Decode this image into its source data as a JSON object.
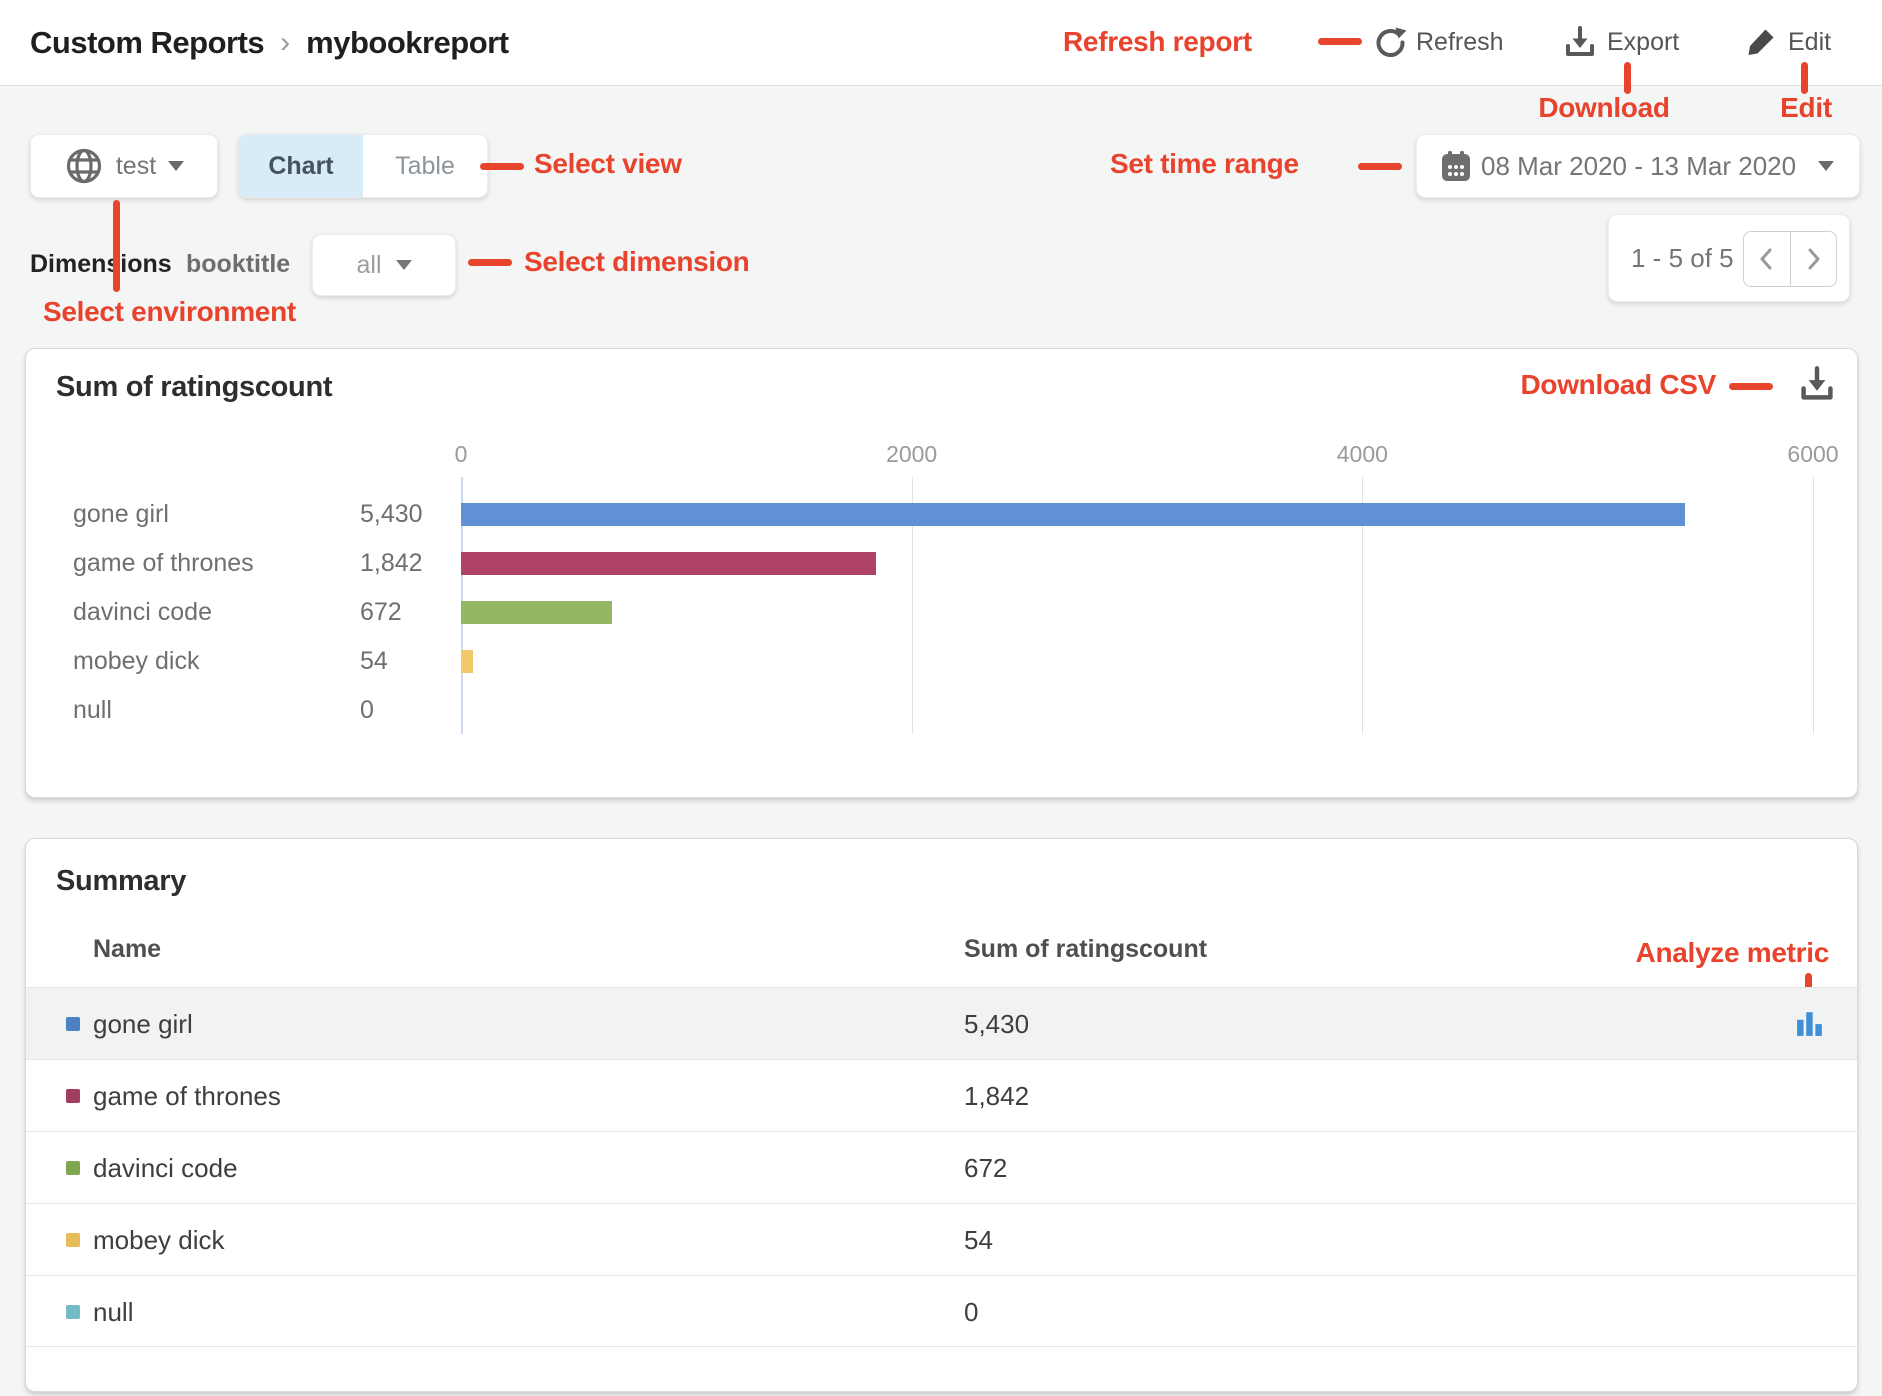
{
  "colors": {
    "annotation": "#e8432c",
    "toggle_active_bg": "#d7ebf9",
    "analyze_icon": "#3f8fd8",
    "axis_line": "#ccd8ec",
    "gridline": "#e3e3e3",
    "alt_row_bg": "#f1f2f2"
  },
  "icons": {
    "environment": "globe-icon",
    "date": "calendar-icon",
    "refresh": "refresh-icon",
    "export": "download-icon",
    "edit": "pencil-icon",
    "download_csv": "download-icon",
    "pagination": [
      "chevron-left-icon",
      "chevron-right-icon"
    ],
    "analyze": "bar-chart-icon"
  },
  "header": {
    "breadcrumb": [
      "Custom Reports",
      "mybookreport"
    ],
    "breadcrumb_separator": "›",
    "refresh_label": "Refresh",
    "export_label": "Export",
    "edit_label": "Edit"
  },
  "annotations": {
    "refresh": "Refresh report",
    "download": "Download",
    "edit": "Edit",
    "select_view": "Select view",
    "set_time_range": "Set time range",
    "select_dimension": "Select dimension",
    "select_environment": "Select environment",
    "download_csv": "Download CSV",
    "analyze_metric": "Analyze metric"
  },
  "toolbar": {
    "environment": "test",
    "view_tabs": [
      {
        "label": "Chart",
        "active": true
      },
      {
        "label": "Table",
        "active": false
      }
    ],
    "date_range": "08 Mar 2020 - 13 Mar 2020"
  },
  "dimensions_bar": {
    "label": "Dimensions",
    "dimension_name": "booktitle",
    "selected_value": "all"
  },
  "pagination": {
    "text": "1 - 5 of 5"
  },
  "chart_card": {
    "title": "Sum of ratingscount"
  },
  "chart_data": {
    "type": "bar",
    "orientation": "horizontal",
    "title": "Sum of ratingscount",
    "categories": [
      "gone girl",
      "game of thrones",
      "davinci code",
      "mobey dick",
      "null"
    ],
    "values": [
      5430,
      1842,
      672,
      54,
      0
    ],
    "value_labels": [
      "5,430",
      "1,842",
      "672",
      "54",
      "0"
    ],
    "bar_colors": [
      "#6191d5",
      "#ae4367",
      "#94b766",
      "#f0ca6b",
      "#72bac6"
    ],
    "xticks": [
      0,
      2000,
      4000,
      6000
    ],
    "xlim": [
      0,
      6000
    ],
    "grid": true,
    "legend_position": "none"
  },
  "summary": {
    "title": "Summary",
    "columns": [
      "Name",
      "Sum of ratingscount"
    ],
    "rows": [
      {
        "name": "gone girl",
        "value": "5,430",
        "swatch_color": "#4d80c4"
      },
      {
        "name": "game of thrones",
        "value": "1,842",
        "swatch_color": "#a43b61"
      },
      {
        "name": "davinci code",
        "value": "672",
        "swatch_color": "#80a750"
      },
      {
        "name": "mobey dick",
        "value": "54",
        "swatch_color": "#e6bd58"
      },
      {
        "name": "null",
        "value": "0",
        "swatch_color": "#72bac6"
      }
    ]
  }
}
